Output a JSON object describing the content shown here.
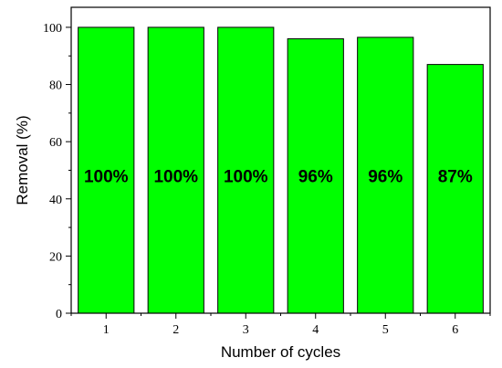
{
  "chart_data": {
    "type": "bar",
    "categories": [
      "1",
      "2",
      "3",
      "4",
      "5",
      "6"
    ],
    "values": [
      100,
      100,
      100,
      96,
      96.5,
      87
    ],
    "data_labels": [
      "100%",
      "100%",
      "100%",
      "96%",
      "96%",
      "87%"
    ],
    "title": "",
    "xlabel": "Number of cycles",
    "ylabel": "Removal (%)",
    "ylim": [
      0,
      107
    ],
    "yticks": [
      0,
      20,
      40,
      60,
      80,
      100
    ],
    "grid": false,
    "legend": "none",
    "colors": {
      "bar_fill": "#00ff00",
      "bar_stroke": "#000000"
    }
  }
}
